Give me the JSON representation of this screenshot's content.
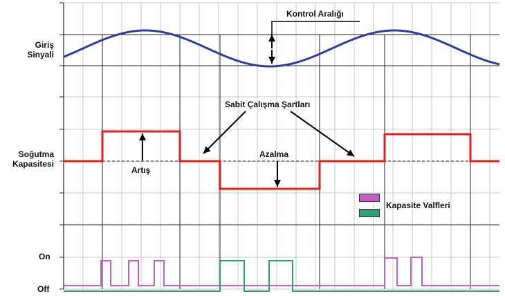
{
  "labels": {
    "input_signal_line1": "Giriş",
    "input_signal_line2": "Sinyali",
    "cooling_capacity_line1": "Soğutma",
    "cooling_capacity_line2": "Kapasitesi",
    "on": "On",
    "off": "Off",
    "control_range": "Kontrol Aralığı",
    "constant_conditions": "Sabit Çalışma Şartları",
    "increase": "Artış",
    "decrease": "Azalma",
    "capacity_valves": "Kapasite Valfleri"
  },
  "colors": {
    "signal": "#2e3d9a",
    "capacity": "#e02020",
    "valve_1": "#c060c0",
    "valve_2": "#30a070",
    "grid": "#c8c8c8",
    "axis": "#222222"
  },
  "capacity_levels": [
    "normal",
    "increase",
    "normal",
    "decrease",
    "normal",
    "increase",
    "normal"
  ],
  "valve_pulses": {
    "valve_1": "on during capacity increase",
    "valve_2": "on during capacity decrease"
  }
}
